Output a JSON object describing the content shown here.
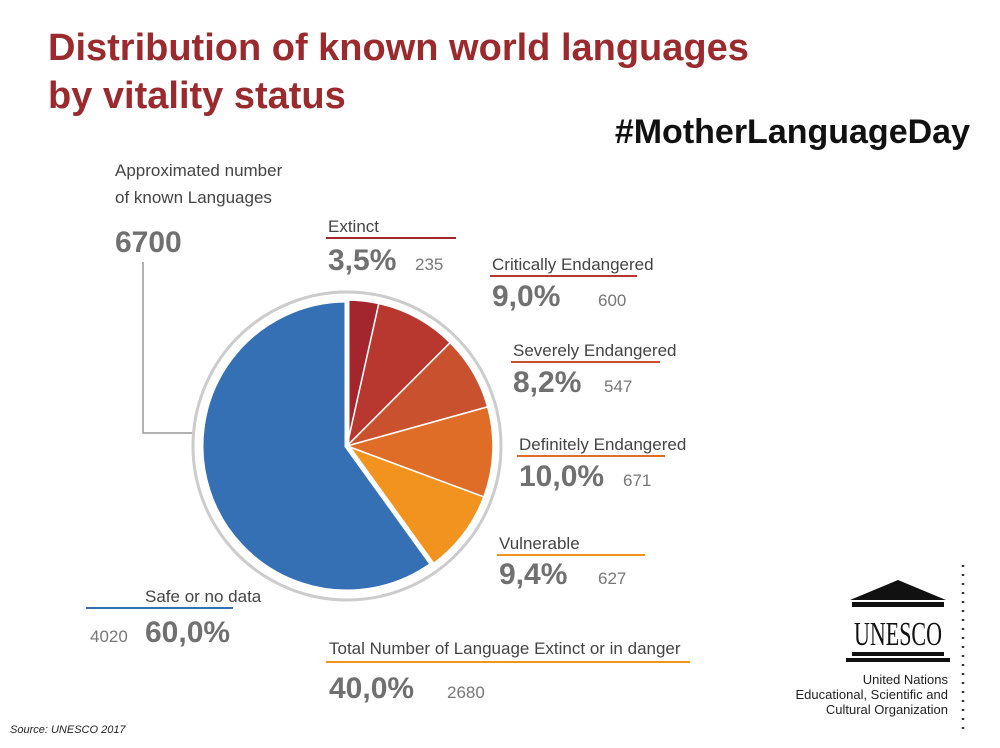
{
  "chart_data": {
    "type": "pie",
    "title": [
      "Distribution of known world languages",
      "by vitality status"
    ],
    "hashtag": "#MotherLanguageDay",
    "total_label": [
      "Approximated number",
      "of known Languages"
    ],
    "total": 6700,
    "categories": [
      "Extinct",
      "Critically Endangered",
      "Severely Endangered",
      "Definitely Endangered",
      "Vulnerable",
      "Safe or no data"
    ],
    "values": [
      3.5,
      9.0,
      8.2,
      10.0,
      9.4,
      60.0
    ],
    "value_labels": [
      "3,5%",
      "9,0%",
      "8,2%",
      "10,0%",
      "9,4%",
      "60,0%"
    ],
    "counts": [
      235,
      600,
      547,
      671,
      627,
      4020
    ],
    "colors": [
      "#a3262e",
      "#b8382f",
      "#c9512e",
      "#e06d27",
      "#f2921f",
      "#3470b3"
    ],
    "summary": {
      "label": "Total Number of Language Extinct or in danger",
      "value": 40.0,
      "value_label": "40,0%",
      "count": 2680
    },
    "source": "Source: UNESCO 2017",
    "logo": {
      "name": "UNESCO",
      "organization": [
        "United Nations",
        "Educational, Scientific and",
        "Cultural Organization"
      ]
    }
  }
}
